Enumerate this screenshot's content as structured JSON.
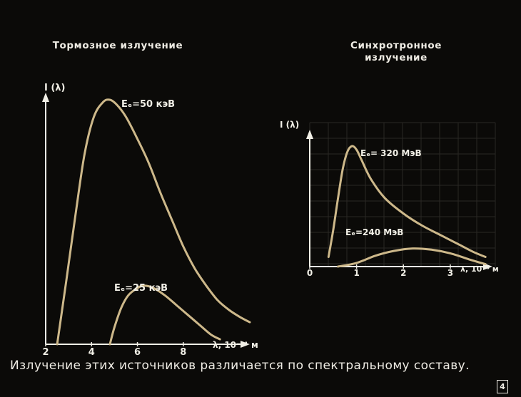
{
  "caption": "Излучение этих источников различается по спектральному составу.",
  "slide_number": "4",
  "colors": {
    "background": "#0b0a08",
    "curve": "#cdb88a",
    "axis": "#f1efe6"
  },
  "chart_data": [
    {
      "type": "line",
      "title": "Тормозное излучение",
      "ylabel": "I (λ)",
      "xlabel": "λ, 10⁻¹¹ м",
      "xlim": [
        2,
        10.9
      ],
      "ylim": [
        0,
        1
      ],
      "x_ticks": [
        "2",
        "4",
        "6",
        "8"
      ],
      "grid": false,
      "series": [
        {
          "name": "Eₑ=50 кэВ",
          "x": [
            2.5,
            2.9,
            3.3,
            3.7,
            4.1,
            4.5,
            4.8,
            5.1,
            5.5,
            6.0,
            6.5,
            7.0,
            7.5,
            8.0,
            8.5,
            9.0,
            9.5,
            10.0,
            10.5,
            10.9
          ],
          "y": [
            0.0,
            0.26,
            0.53,
            0.78,
            0.93,
            0.99,
            1.0,
            0.98,
            0.93,
            0.84,
            0.74,
            0.62,
            0.51,
            0.4,
            0.31,
            0.24,
            0.18,
            0.14,
            0.11,
            0.09
          ]
        },
        {
          "name": "Eₑ=25 кэВ",
          "x": [
            4.8,
            5.0,
            5.3,
            5.6,
            6.0,
            6.3,
            6.7,
            7.2,
            7.7,
            8.2,
            8.7,
            9.2,
            9.6
          ],
          "y": [
            0.0,
            0.07,
            0.15,
            0.2,
            0.23,
            0.24,
            0.23,
            0.2,
            0.16,
            0.12,
            0.08,
            0.04,
            0.02
          ]
        }
      ]
    },
    {
      "type": "line",
      "title": "Синхротронное излучение",
      "ylabel": "I (λ)",
      "xlabel": "λ, 10⁻⁸ м",
      "xlim": [
        0,
        3.9
      ],
      "ylim": [
        0,
        1
      ],
      "x_ticks": [
        "0",
        "1",
        "2",
        "3"
      ],
      "grid": true,
      "series": [
        {
          "name": "Eₑ= 320 МэВ",
          "x": [
            0.4,
            0.5,
            0.6,
            0.7,
            0.8,
            0.9,
            1.0,
            1.1,
            1.3,
            1.6,
            2.0,
            2.4,
            2.8,
            3.2,
            3.5,
            3.75
          ],
          "y": [
            0.08,
            0.3,
            0.56,
            0.8,
            0.95,
            1.0,
            0.97,
            0.89,
            0.73,
            0.57,
            0.44,
            0.34,
            0.26,
            0.18,
            0.12,
            0.08
          ]
        },
        {
          "name": "Eₑ=240 МэВ",
          "x": [
            0.6,
            1.0,
            1.4,
            1.8,
            2.2,
            2.6,
            3.0,
            3.4,
            3.75
          ],
          "y": [
            0.0,
            0.03,
            0.09,
            0.13,
            0.15,
            0.14,
            0.11,
            0.06,
            0.02
          ]
        }
      ]
    }
  ]
}
